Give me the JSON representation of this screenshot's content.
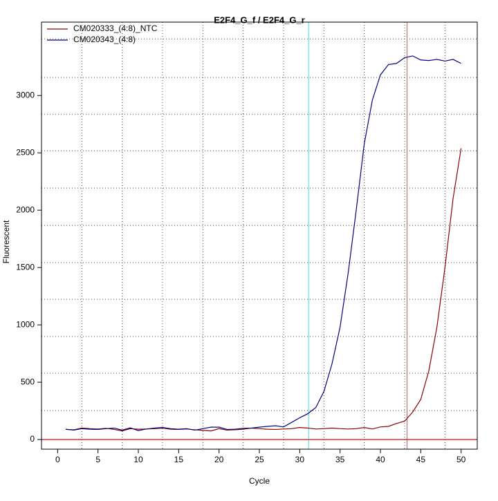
{
  "chart_data": {
    "type": "line",
    "title": "E2F4_G_f / E2F4_G_r",
    "xlabel": "Cycle",
    "ylabel": "Fluorescent",
    "x": [
      1,
      2,
      3,
      4,
      5,
      6,
      7,
      8,
      9,
      10,
      11,
      12,
      13,
      14,
      15,
      16,
      17,
      18,
      19,
      20,
      21,
      22,
      23,
      24,
      25,
      26,
      27,
      28,
      29,
      30,
      31,
      32,
      33,
      34,
      35,
      36,
      37,
      38,
      39,
      40,
      41,
      42,
      43,
      44,
      45,
      46,
      47,
      48,
      49,
      50
    ],
    "series": [
      {
        "name": "CM020333_(4:8)_NTC",
        "color": "#8b0000",
        "values": [
          88,
          85,
          100,
          95,
          92,
          98,
          88,
          75,
          95,
          90,
          92,
          95,
          100,
          90,
          88,
          92,
          85,
          80,
          75,
          95,
          82,
          85,
          90,
          100,
          95,
          90,
          88,
          92,
          95,
          105,
          100,
          92,
          95,
          100,
          95,
          92,
          95,
          105,
          92,
          110,
          115,
          140,
          160,
          240,
          350,
          600,
          980,
          1500,
          2100,
          2540
        ]
      },
      {
        "name": "CM020343_(4:8)",
        "color": "#000080",
        "values": [
          90,
          82,
          95,
          90,
          88,
          95,
          100,
          82,
          102,
          78,
          92,
          100,
          105,
          95,
          90,
          95,
          82,
          95,
          108,
          108,
          88,
          90,
          98,
          100,
          108,
          115,
          120,
          110,
          150,
          190,
          225,
          280,
          420,
          660,
          980,
          1450,
          2000,
          2580,
          2960,
          3180,
          3270,
          3280,
          3330,
          3345,
          3310,
          3305,
          3315,
          3300,
          3315,
          3280
        ]
      }
    ],
    "xlim": [
      -2,
      52
    ],
    "ylim": [
      -84,
      3640
    ],
    "xticks": [
      0,
      5,
      10,
      15,
      20,
      25,
      30,
      35,
      40,
      45,
      50
    ],
    "yticks": [
      0,
      500,
      1000,
      1500,
      2000,
      2500,
      3000
    ],
    "xgrid": [
      3,
      8,
      13,
      18,
      23,
      28,
      33,
      38,
      43,
      48
    ],
    "ygrid": [
      253,
      578,
      898,
      1223,
      1542,
      1867,
      2193,
      2518,
      2837,
      3157,
      3494
    ],
    "vlines": [
      {
        "value": 31.1,
        "color": "#40e0d0"
      },
      {
        "value": 43.3,
        "color": "#cd5c5c"
      }
    ],
    "hline": {
      "value": 0,
      "color": "#dd2222"
    },
    "legend": "top-left"
  }
}
